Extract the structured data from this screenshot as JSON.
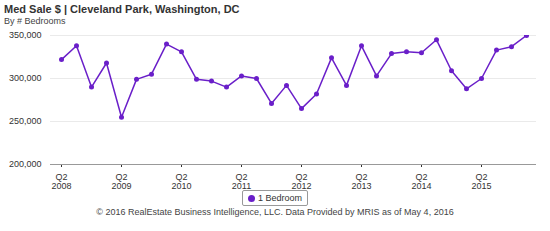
{
  "chart_data": {
    "type": "line",
    "title": "Med Sale $ | Cleveland Park, Washington, DC",
    "subtitle": "By # Bedrooms",
    "caption": "© 2016 RealEstate Business Intelligence, LLC. Data Provided by MRIS as of May 4, 2016",
    "categories": [
      "Q2\n2008",
      null,
      null,
      null,
      "Q2\n2009",
      null,
      null,
      null,
      "Q2\n2010",
      null,
      null,
      null,
      "Q2\n2011",
      null,
      null,
      null,
      "Q2\n2012",
      null,
      null,
      null,
      "Q2\n2013",
      null,
      null,
      null,
      "Q2\n2014",
      null,
      null,
      null,
      "Q2\n2015",
      null,
      null,
      null
    ],
    "series": [
      {
        "name": "1 Bedroom",
        "color": "#6a1fc9",
        "marker": "circle",
        "values": [
          322000,
          338000,
          290000,
          318000,
          255000,
          299000,
          305000,
          340000,
          331000,
          299000,
          297000,
          290000,
          303000,
          300000,
          271000,
          292000,
          265000,
          282000,
          324000,
          292000,
          338000,
          303000,
          329000,
          331000,
          330000,
          345000,
          309000,
          288000,
          300000,
          333000,
          337000,
          350000
        ]
      }
    ],
    "ylim": [
      200000,
      350000
    ],
    "yticks": [
      {
        "value": 200000,
        "label": "200,000"
      },
      {
        "value": 250000,
        "label": "250,000"
      },
      {
        "value": 300000,
        "label": "300,000"
      },
      {
        "value": 350000,
        "label": "350,000"
      }
    ],
    "grid": true,
    "legend": "bottom"
  }
}
